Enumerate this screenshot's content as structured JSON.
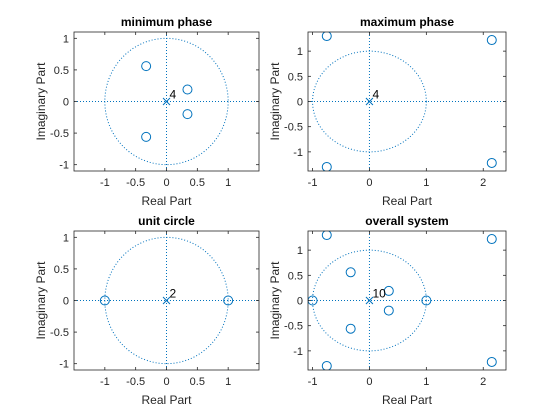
{
  "chart_data": [
    {
      "type": "scatter",
      "title": "minimum phase",
      "xlabel": "Real Part",
      "ylabel": "Imaginary Part",
      "xlim": [
        -1.5,
        1.5
      ],
      "ylim": [
        -1.1,
        1.1
      ],
      "xticks": [
        -1,
        -0.5,
        0,
        0.5,
        1
      ],
      "xtick_labels": [
        "-1",
        "-0.5",
        "0",
        "0.5",
        "1"
      ],
      "yticks": [
        -1,
        -0.5,
        0,
        0.5,
        1
      ],
      "ytick_labels": [
        "-1",
        "-0.5",
        "0",
        "0.5",
        "1"
      ],
      "zeros": [
        [
          -0.33,
          0.56
        ],
        [
          -0.33,
          -0.56
        ],
        [
          0.34,
          0.19
        ],
        [
          0.34,
          -0.2
        ]
      ],
      "poles": [
        [
          0,
          0
        ]
      ],
      "annotations": [
        {
          "x": 0,
          "y": 0,
          "text": "4"
        }
      ],
      "unit_circle": true,
      "color": "#0072BD"
    },
    {
      "type": "scatter",
      "title": "maximum phase",
      "xlabel": "Real Part",
      "ylabel": "Imaginary Part",
      "xlim": [
        -1.08,
        2.4
      ],
      "ylim": [
        -1.38,
        1.38
      ],
      "xticks": [
        -1,
        0,
        1,
        2
      ],
      "xtick_labels": [
        "-1",
        "0",
        "1",
        "2"
      ],
      "yticks": [
        -1,
        -0.5,
        0,
        0.5,
        1
      ],
      "ytick_labels": [
        "-1",
        "-0.5",
        "0",
        "0.5",
        "1"
      ],
      "zeros": [
        [
          -0.75,
          1.3
        ],
        [
          -0.75,
          -1.3
        ],
        [
          2.15,
          1.22
        ],
        [
          2.15,
          -1.22
        ]
      ],
      "poles": [
        [
          0,
          0
        ]
      ],
      "annotations": [
        {
          "x": 0,
          "y": 0,
          "text": "4"
        }
      ],
      "unit_circle": true,
      "color": "#0072BD"
    },
    {
      "type": "scatter",
      "title": "unit circle",
      "xlabel": "Real Part",
      "ylabel": "Imaginary Part",
      "xlim": [
        -1.5,
        1.5
      ],
      "ylim": [
        -1.1,
        1.1
      ],
      "xticks": [
        -1,
        -0.5,
        0,
        0.5,
        1
      ],
      "xtick_labels": [
        "-1",
        "-0.5",
        "0",
        "0.5",
        "1"
      ],
      "yticks": [
        -1,
        -0.5,
        0,
        0.5,
        1
      ],
      "ytick_labels": [
        "-1",
        "-0.5",
        "0",
        "0.5",
        "1"
      ],
      "zeros": [
        [
          -1,
          0
        ],
        [
          1,
          0
        ]
      ],
      "poles": [
        [
          0,
          0
        ]
      ],
      "annotations": [
        {
          "x": 0,
          "y": 0,
          "text": "2"
        }
      ],
      "unit_circle": true,
      "color": "#0072BD"
    },
    {
      "type": "scatter",
      "title": "overall system",
      "xlabel": "Real Part",
      "ylabel": "Imaginary Part",
      "xlim": [
        -1.08,
        2.4
      ],
      "ylim": [
        -1.38,
        1.38
      ],
      "xticks": [
        -1,
        0,
        1,
        2
      ],
      "xtick_labels": [
        "-1",
        "0",
        "1",
        "2"
      ],
      "yticks": [
        -1,
        -0.5,
        0,
        0.5,
        1
      ],
      "ytick_labels": [
        "-1",
        "-0.5",
        "0",
        "0.5",
        "1"
      ],
      "zeros": [
        [
          -0.75,
          1.3
        ],
        [
          -0.75,
          -1.3
        ],
        [
          2.15,
          1.22
        ],
        [
          2.15,
          -1.22
        ],
        [
          -0.33,
          0.56
        ],
        [
          -0.33,
          -0.56
        ],
        [
          0.34,
          0.19
        ],
        [
          0.34,
          -0.2
        ],
        [
          -1,
          0
        ],
        [
          1,
          0
        ]
      ],
      "poles": [
        [
          0,
          0
        ]
      ],
      "annotations": [
        {
          "x": 0,
          "y": 0,
          "text": "10"
        }
      ],
      "unit_circle": true,
      "color": "#0072BD"
    }
  ]
}
